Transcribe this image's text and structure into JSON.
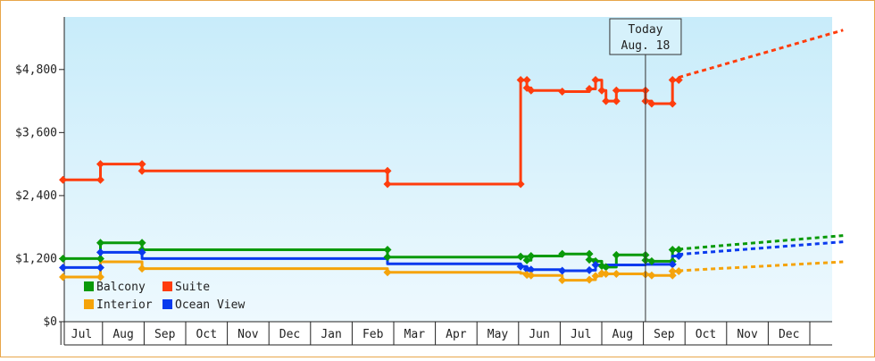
{
  "chart_data": {
    "type": "line",
    "title": "",
    "xlabel": "",
    "ylabel": "",
    "ylim": [
      0,
      5800
    ],
    "xlim": [
      -0.4,
      18.3
    ],
    "y_ticks": [
      {
        "value": 0,
        "label": "$0"
      },
      {
        "value": 1200,
        "label": "$1,200"
      },
      {
        "value": 2400,
        "label": "$2,400"
      },
      {
        "value": 3600,
        "label": "$3,600"
      },
      {
        "value": 4800,
        "label": "$4,800"
      }
    ],
    "months": [
      "Jul",
      "Aug",
      "Sep",
      "Oct",
      "Nov",
      "Dec",
      "Jan",
      "Feb",
      "Mar",
      "Apr",
      "May",
      "Jun",
      "Jul",
      "Aug",
      "Sep",
      "Oct",
      "Nov",
      "Dec"
    ],
    "today_marker": {
      "line1": "Today",
      "line2": "Aug. 18",
      "x": 13.55
    },
    "grid": false,
    "legend_position": "bottom-left",
    "series": [
      {
        "name": "Suite",
        "color": "#ff3d0d",
        "points": [
          [
            -0.45,
            2700
          ],
          [
            0.45,
            2700
          ],
          [
            0.45,
            3000
          ],
          [
            1.45,
            3000
          ],
          [
            1.45,
            2870
          ],
          [
            7.35,
            2870
          ],
          [
            7.35,
            2620
          ],
          [
            10.55,
            2620
          ],
          [
            10.55,
            4600
          ],
          [
            10.7,
            4600
          ],
          [
            10.7,
            4450
          ],
          [
            10.8,
            4450
          ],
          [
            10.8,
            4400
          ],
          [
            11.55,
            4400
          ],
          [
            11.55,
            4380
          ],
          [
            12.2,
            4380
          ],
          [
            12.2,
            4430
          ],
          [
            12.35,
            4430
          ],
          [
            12.35,
            4600
          ],
          [
            12.5,
            4600
          ],
          [
            12.5,
            4400
          ],
          [
            12.6,
            4400
          ],
          [
            12.6,
            4200
          ],
          [
            12.85,
            4200
          ],
          [
            12.85,
            4400
          ],
          [
            13.55,
            4400
          ],
          [
            13.55,
            4200
          ],
          [
            13.7,
            4200
          ],
          [
            13.7,
            4150
          ],
          [
            13.8,
            4150
          ],
          [
            13.8,
            4150
          ],
          [
            14.2,
            4150
          ],
          [
            14.2,
            4600
          ],
          [
            14.35,
            4600
          ]
        ],
        "markers": [
          [
            -0.45,
            2700
          ],
          [
            0.45,
            2700
          ],
          [
            0.45,
            3000
          ],
          [
            1.45,
            3000
          ],
          [
            1.45,
            2870
          ],
          [
            7.35,
            2870
          ],
          [
            7.35,
            2620
          ],
          [
            10.55,
            2620
          ],
          [
            10.55,
            4600
          ],
          [
            10.7,
            4600
          ],
          [
            10.7,
            4450
          ],
          [
            10.8,
            4400
          ],
          [
            11.55,
            4380
          ],
          [
            12.2,
            4430
          ],
          [
            12.35,
            4600
          ],
          [
            12.5,
            4400
          ],
          [
            12.6,
            4200
          ],
          [
            12.85,
            4200
          ],
          [
            12.85,
            4400
          ],
          [
            13.55,
            4400
          ],
          [
            13.55,
            4200
          ],
          [
            13.7,
            4150
          ],
          [
            14.2,
            4150
          ],
          [
            14.2,
            4600
          ],
          [
            14.35,
            4600
          ]
        ],
        "projection": [
          [
            14.35,
            4650
          ],
          [
            18.3,
            5550
          ]
        ]
      },
      {
        "name": "Balcony",
        "color": "#0a9a0a",
        "points": [
          [
            -0.45,
            1200
          ],
          [
            0.45,
            1200
          ],
          [
            0.45,
            1500
          ],
          [
            1.45,
            1500
          ],
          [
            1.45,
            1370
          ],
          [
            7.35,
            1370
          ],
          [
            7.35,
            1230
          ],
          [
            10.55,
            1230
          ],
          [
            10.55,
            1240
          ],
          [
            10.7,
            1240
          ],
          [
            10.7,
            1170
          ],
          [
            10.8,
            1170
          ],
          [
            10.8,
            1250
          ],
          [
            11.55,
            1250
          ],
          [
            11.55,
            1290
          ],
          [
            12.2,
            1290
          ],
          [
            12.2,
            1180
          ],
          [
            12.35,
            1180
          ],
          [
            12.35,
            1150
          ],
          [
            12.5,
            1150
          ],
          [
            12.5,
            1060
          ],
          [
            12.6,
            1060
          ],
          [
            12.6,
            1040
          ],
          [
            12.85,
            1040
          ],
          [
            12.85,
            1270
          ],
          [
            13.55,
            1270
          ],
          [
            13.55,
            1170
          ],
          [
            13.7,
            1170
          ],
          [
            13.7,
            1150
          ],
          [
            14.2,
            1150
          ],
          [
            14.2,
            1370
          ],
          [
            14.35,
            1370
          ]
        ],
        "markers": [
          [
            -0.45,
            1200
          ],
          [
            0.45,
            1200
          ],
          [
            0.45,
            1500
          ],
          [
            1.45,
            1500
          ],
          [
            1.45,
            1370
          ],
          [
            7.35,
            1370
          ],
          [
            7.35,
            1230
          ],
          [
            10.55,
            1240
          ],
          [
            10.7,
            1170
          ],
          [
            10.8,
            1250
          ],
          [
            11.55,
            1290
          ],
          [
            12.2,
            1290
          ],
          [
            12.2,
            1180
          ],
          [
            12.35,
            1150
          ],
          [
            12.5,
            1060
          ],
          [
            12.6,
            1040
          ],
          [
            12.85,
            1270
          ],
          [
            13.55,
            1270
          ],
          [
            13.55,
            1170
          ],
          [
            13.7,
            1150
          ],
          [
            14.2,
            1150
          ],
          [
            14.2,
            1370
          ],
          [
            14.35,
            1370
          ]
        ],
        "projection": [
          [
            14.35,
            1380
          ],
          [
            18.3,
            1640
          ]
        ]
      },
      {
        "name": "Ocean View",
        "color": "#0a3aee",
        "points": [
          [
            -0.45,
            1030
          ],
          [
            0.45,
            1030
          ],
          [
            0.45,
            1320
          ],
          [
            1.45,
            1320
          ],
          [
            1.45,
            1200
          ],
          [
            7.35,
            1200
          ],
          [
            7.35,
            1100
          ],
          [
            10.55,
            1100
          ],
          [
            10.55,
            1050
          ],
          [
            10.7,
            1050
          ],
          [
            10.7,
            1000
          ],
          [
            10.8,
            1000
          ],
          [
            10.8,
            990
          ],
          [
            11.55,
            990
          ],
          [
            11.55,
            970
          ],
          [
            12.2,
            970
          ],
          [
            12.2,
            980
          ],
          [
            12.35,
            980
          ],
          [
            12.35,
            1080
          ],
          [
            12.5,
            1080
          ],
          [
            12.5,
            1070
          ],
          [
            12.6,
            1070
          ],
          [
            12.6,
            1080
          ],
          [
            13.55,
            1080
          ],
          [
            13.55,
            1090
          ],
          [
            14.2,
            1090
          ],
          [
            14.2,
            1250
          ],
          [
            14.35,
            1250
          ]
        ],
        "markers": [
          [
            -0.45,
            1030
          ],
          [
            0.45,
            1030
          ],
          [
            0.45,
            1320
          ],
          [
            1.45,
            1320
          ],
          [
            10.55,
            1050
          ],
          [
            10.7,
            1000
          ],
          [
            10.8,
            990
          ],
          [
            11.55,
            970
          ],
          [
            12.2,
            980
          ],
          [
            12.35,
            1080
          ],
          [
            14.2,
            1090
          ],
          [
            14.35,
            1250
          ]
        ],
        "projection": [
          [
            14.35,
            1280
          ],
          [
            18.3,
            1520
          ]
        ]
      },
      {
        "name": "Interior",
        "color": "#f5a30a",
        "points": [
          [
            -0.45,
            850
          ],
          [
            0.45,
            850
          ],
          [
            0.45,
            1140
          ],
          [
            1.45,
            1140
          ],
          [
            1.45,
            1010
          ],
          [
            7.35,
            1010
          ],
          [
            7.35,
            940
          ],
          [
            10.55,
            940
          ],
          [
            10.55,
            920
          ],
          [
            10.7,
            920
          ],
          [
            10.7,
            890
          ],
          [
            10.8,
            890
          ],
          [
            10.8,
            880
          ],
          [
            11.55,
            880
          ],
          [
            11.55,
            790
          ],
          [
            12.2,
            790
          ],
          [
            12.2,
            800
          ],
          [
            12.35,
            800
          ],
          [
            12.35,
            870
          ],
          [
            12.5,
            870
          ],
          [
            12.5,
            920
          ],
          [
            12.6,
            920
          ],
          [
            12.6,
            910
          ],
          [
            13.55,
            910
          ],
          [
            13.55,
            900
          ],
          [
            13.7,
            900
          ],
          [
            13.7,
            880
          ],
          [
            14.2,
            880
          ],
          [
            14.2,
            960
          ],
          [
            14.35,
            960
          ]
        ],
        "markers": [
          [
            -0.45,
            850
          ],
          [
            0.45,
            850
          ],
          [
            1.45,
            1010
          ],
          [
            7.35,
            940
          ],
          [
            10.7,
            890
          ],
          [
            10.8,
            880
          ],
          [
            11.55,
            790
          ],
          [
            12.2,
            800
          ],
          [
            12.35,
            870
          ],
          [
            12.5,
            920
          ],
          [
            12.6,
            910
          ],
          [
            12.85,
            910
          ],
          [
            13.55,
            900
          ],
          [
            13.7,
            880
          ],
          [
            14.2,
            880
          ],
          [
            14.2,
            960
          ],
          [
            14.35,
            960
          ]
        ],
        "projection": [
          [
            14.35,
            970
          ],
          [
            18.3,
            1140
          ]
        ]
      }
    ]
  },
  "legend": [
    {
      "label": "Balcony",
      "color": "#0a9a0a"
    },
    {
      "label": "Suite",
      "color": "#ff3d0d"
    },
    {
      "label": "Interior",
      "color": "#f5a30a"
    },
    {
      "label": "Ocean View",
      "color": "#0a3aee"
    }
  ]
}
